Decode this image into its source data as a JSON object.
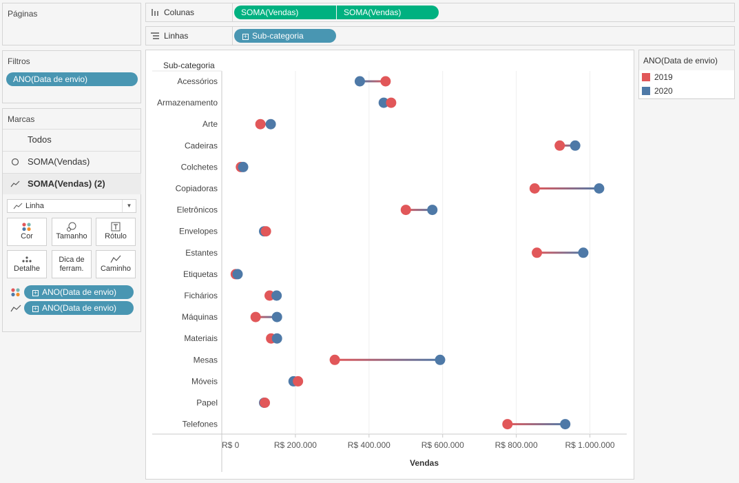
{
  "left": {
    "pages_title": "Páginas",
    "filters_title": "Filtros",
    "filter_pill": "ANO(Data de envio)",
    "marks_title": "Marcas",
    "marks_all": "Todos",
    "marks_measure1": "SOMA(Vendas)",
    "marks_measure2": "SOMA(Vendas) (2)",
    "mark_type": "Linha",
    "cards": {
      "color": "Cor",
      "size": "Tamanho",
      "label": "Rótulo",
      "detail": "Detalhe",
      "tooltip": "Dica de ferram.",
      "path": "Caminho"
    },
    "mark_pills": [
      "ANO(Data de envio)",
      "ANO(Data de envio)"
    ]
  },
  "shelves": {
    "columns_label": "Colunas",
    "rows_label": "Linhas",
    "column_pills": [
      "SOMA(Vendas)",
      "SOMA(Vendas)"
    ],
    "row_pill": "Sub-categoria"
  },
  "legend": {
    "title": "ANO(Data de envio)",
    "items": [
      {
        "label": "2019",
        "color": "#e15759"
      },
      {
        "label": "2020",
        "color": "#4e79a7"
      }
    ]
  },
  "chart_data": {
    "type": "scatter",
    "title": "",
    "row_header": "Sub-categoria",
    "xlabel": "Vendas",
    "xlim": [
      0,
      1100000
    ],
    "xticks": [
      0,
      200000,
      400000,
      600000,
      800000,
      1000000
    ],
    "xtick_labels": [
      "R$ 0",
      "R$ 200.000",
      "R$ 400.000",
      "R$ 600.000",
      "R$ 800.000",
      "R$ 1.000.000"
    ],
    "categories": [
      "Acessórios",
      "Armazenamento",
      "Arte",
      "Cadeiras",
      "Colchetes",
      "Copiadoras",
      "Eletrônicos",
      "Envelopes",
      "Estantes",
      "Etiquetas",
      "Fichários",
      "Máquinas",
      "Materiais",
      "Mesas",
      "Móveis",
      "Papel",
      "Telefones"
    ],
    "series": [
      {
        "name": "2019",
        "color": "#e15759",
        "values": [
          445000,
          460000,
          105000,
          918000,
          52000,
          850000,
          500000,
          120000,
          856000,
          38000,
          130000,
          92000,
          134000,
          307000,
          207000,
          117000,
          776000
        ]
      },
      {
        "name": "2020",
        "color": "#4e79a7",
        "values": [
          375000,
          440000,
          133000,
          960000,
          58000,
          1025000,
          572000,
          115000,
          982000,
          43000,
          149000,
          150000,
          150000,
          593000,
          195000,
          115000,
          933000
        ]
      }
    ],
    "grid": true,
    "legend_position": "right"
  }
}
